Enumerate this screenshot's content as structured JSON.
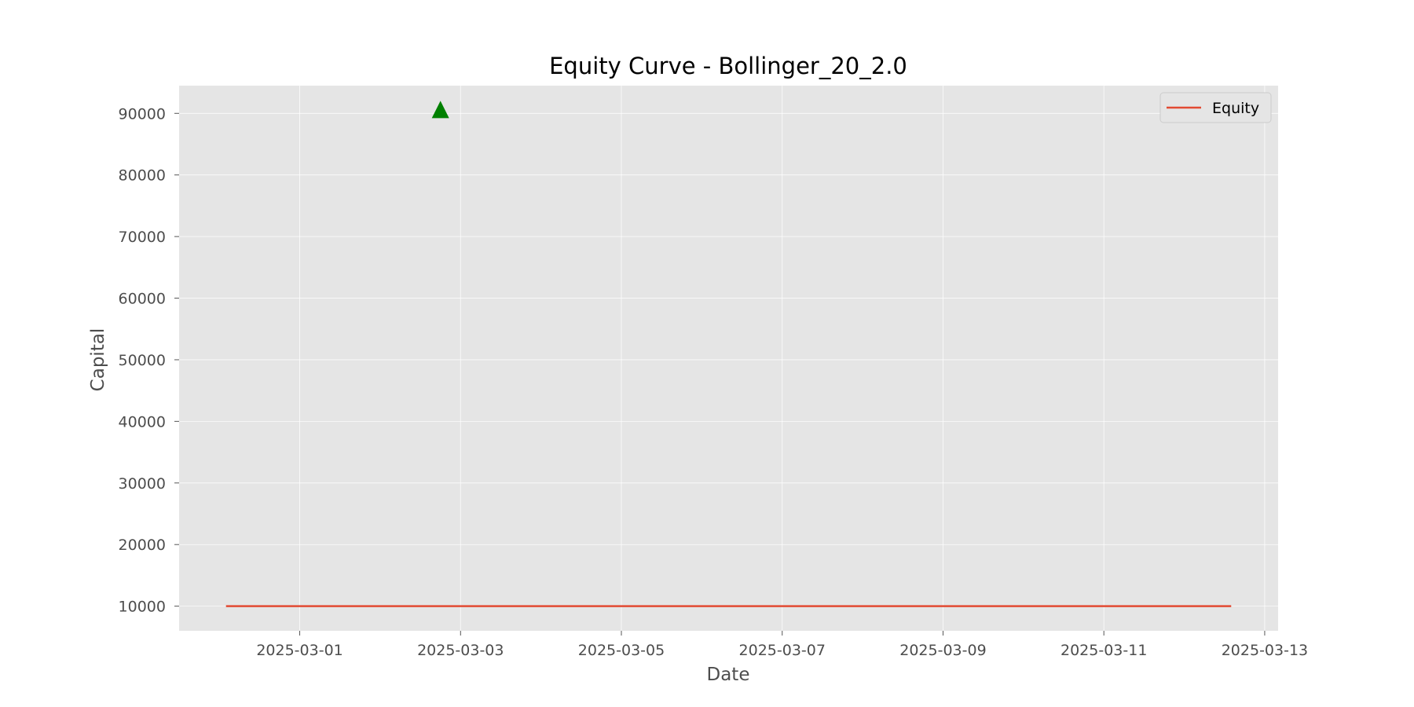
{
  "chart_data": {
    "type": "line",
    "title": "Equity Curve - Bollinger_20_2.0",
    "xlabel": "Date",
    "ylabel": "Capital",
    "x_ticks": [
      "2025-03-01",
      "2025-03-03",
      "2025-03-05",
      "2025-03-07",
      "2025-03-09",
      "2025-03-11",
      "2025-03-13"
    ],
    "y_ticks": [
      10000,
      20000,
      30000,
      40000,
      50000,
      60000,
      70000,
      80000,
      90000
    ],
    "xlim": [
      "2025-02-27T12:00",
      "2025-03-13T04:00"
    ],
    "ylim": [
      6000,
      94500
    ],
    "grid": true,
    "legend_position": "top-right",
    "series": [
      {
        "name": "Equity",
        "color": "#e24a33",
        "x": [
          "2025-02-28T02:00",
          "2025-03-12T14:00"
        ],
        "y": [
          10000,
          10000
        ]
      }
    ],
    "markers": [
      {
        "shape": "triangle-up",
        "color": "#008000",
        "x": "2025-03-02T18:00",
        "y": 90500
      }
    ]
  }
}
